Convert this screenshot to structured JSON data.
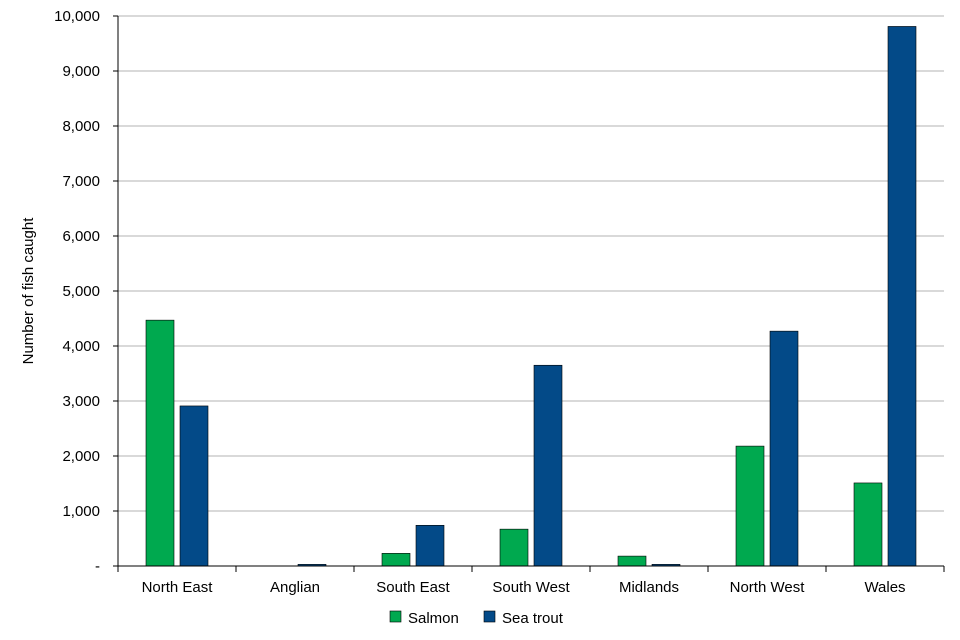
{
  "chart_data": {
    "type": "bar",
    "title": "",
    "xlabel": "",
    "ylabel": "Number  of fish caught",
    "categories": [
      "North East",
      "Anglian",
      "South East",
      "South West",
      "Midlands",
      "North West",
      "Wales"
    ],
    "series": [
      {
        "name": "Salmon",
        "color": "#00a94f",
        "values": [
          4470,
          0,
          230,
          670,
          180,
          2180,
          1510
        ]
      },
      {
        "name": "Sea trout",
        "color": "#034a88",
        "values": [
          2910,
          30,
          740,
          3650,
          30,
          4270,
          9810
        ]
      }
    ],
    "ylim": [
      0,
      10000
    ],
    "yticks": [
      0,
      1000,
      2000,
      3000,
      4000,
      5000,
      6000,
      7000,
      8000,
      9000,
      10000
    ],
    "ytick_labels": [
      "-",
      "1,000",
      "2,000",
      "3,000",
      "4,000",
      "5,000",
      "6,000",
      "7,000",
      "8,000",
      "9,000",
      "10,000"
    ],
    "grid": true,
    "legend_position": "bottom"
  }
}
